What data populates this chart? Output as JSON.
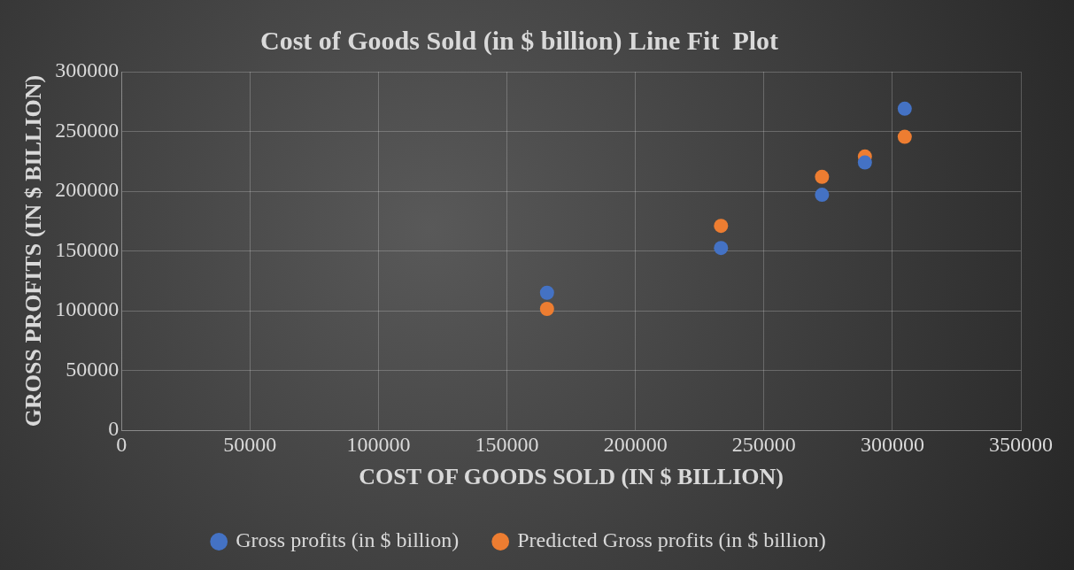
{
  "chart_data": {
    "type": "scatter",
    "title": "Cost of Goods Sold (in $ billion) Line Fit  Plot",
    "xlabel": "COST OF GOODS SOLD (IN $ BILLION)",
    "ylabel": "GROSS PROFITS (IN $ BILLION)",
    "x": [
      165600,
      233300,
      272600,
      289300,
      304800
    ],
    "series": [
      {
        "name": "Gross profits (in $ billion)",
        "color": "#4472c4",
        "values": [
          115000,
          152500,
          197000,
          224000,
          269000
        ]
      },
      {
        "name": "Predicted Gross profits (in $ billion)",
        "color": "#ed7d31",
        "values": [
          101500,
          171000,
          212000,
          229000,
          245500
        ]
      }
    ],
    "xlim": [
      0,
      350000
    ],
    "xticks": [
      0,
      50000,
      100000,
      150000,
      200000,
      250000,
      300000,
      350000
    ],
    "ylim": [
      0,
      300000
    ],
    "yticks": [
      0,
      50000,
      100000,
      150000,
      200000,
      250000,
      300000
    ],
    "grid": true,
    "legend": "bottom",
    "marker": "circle"
  }
}
